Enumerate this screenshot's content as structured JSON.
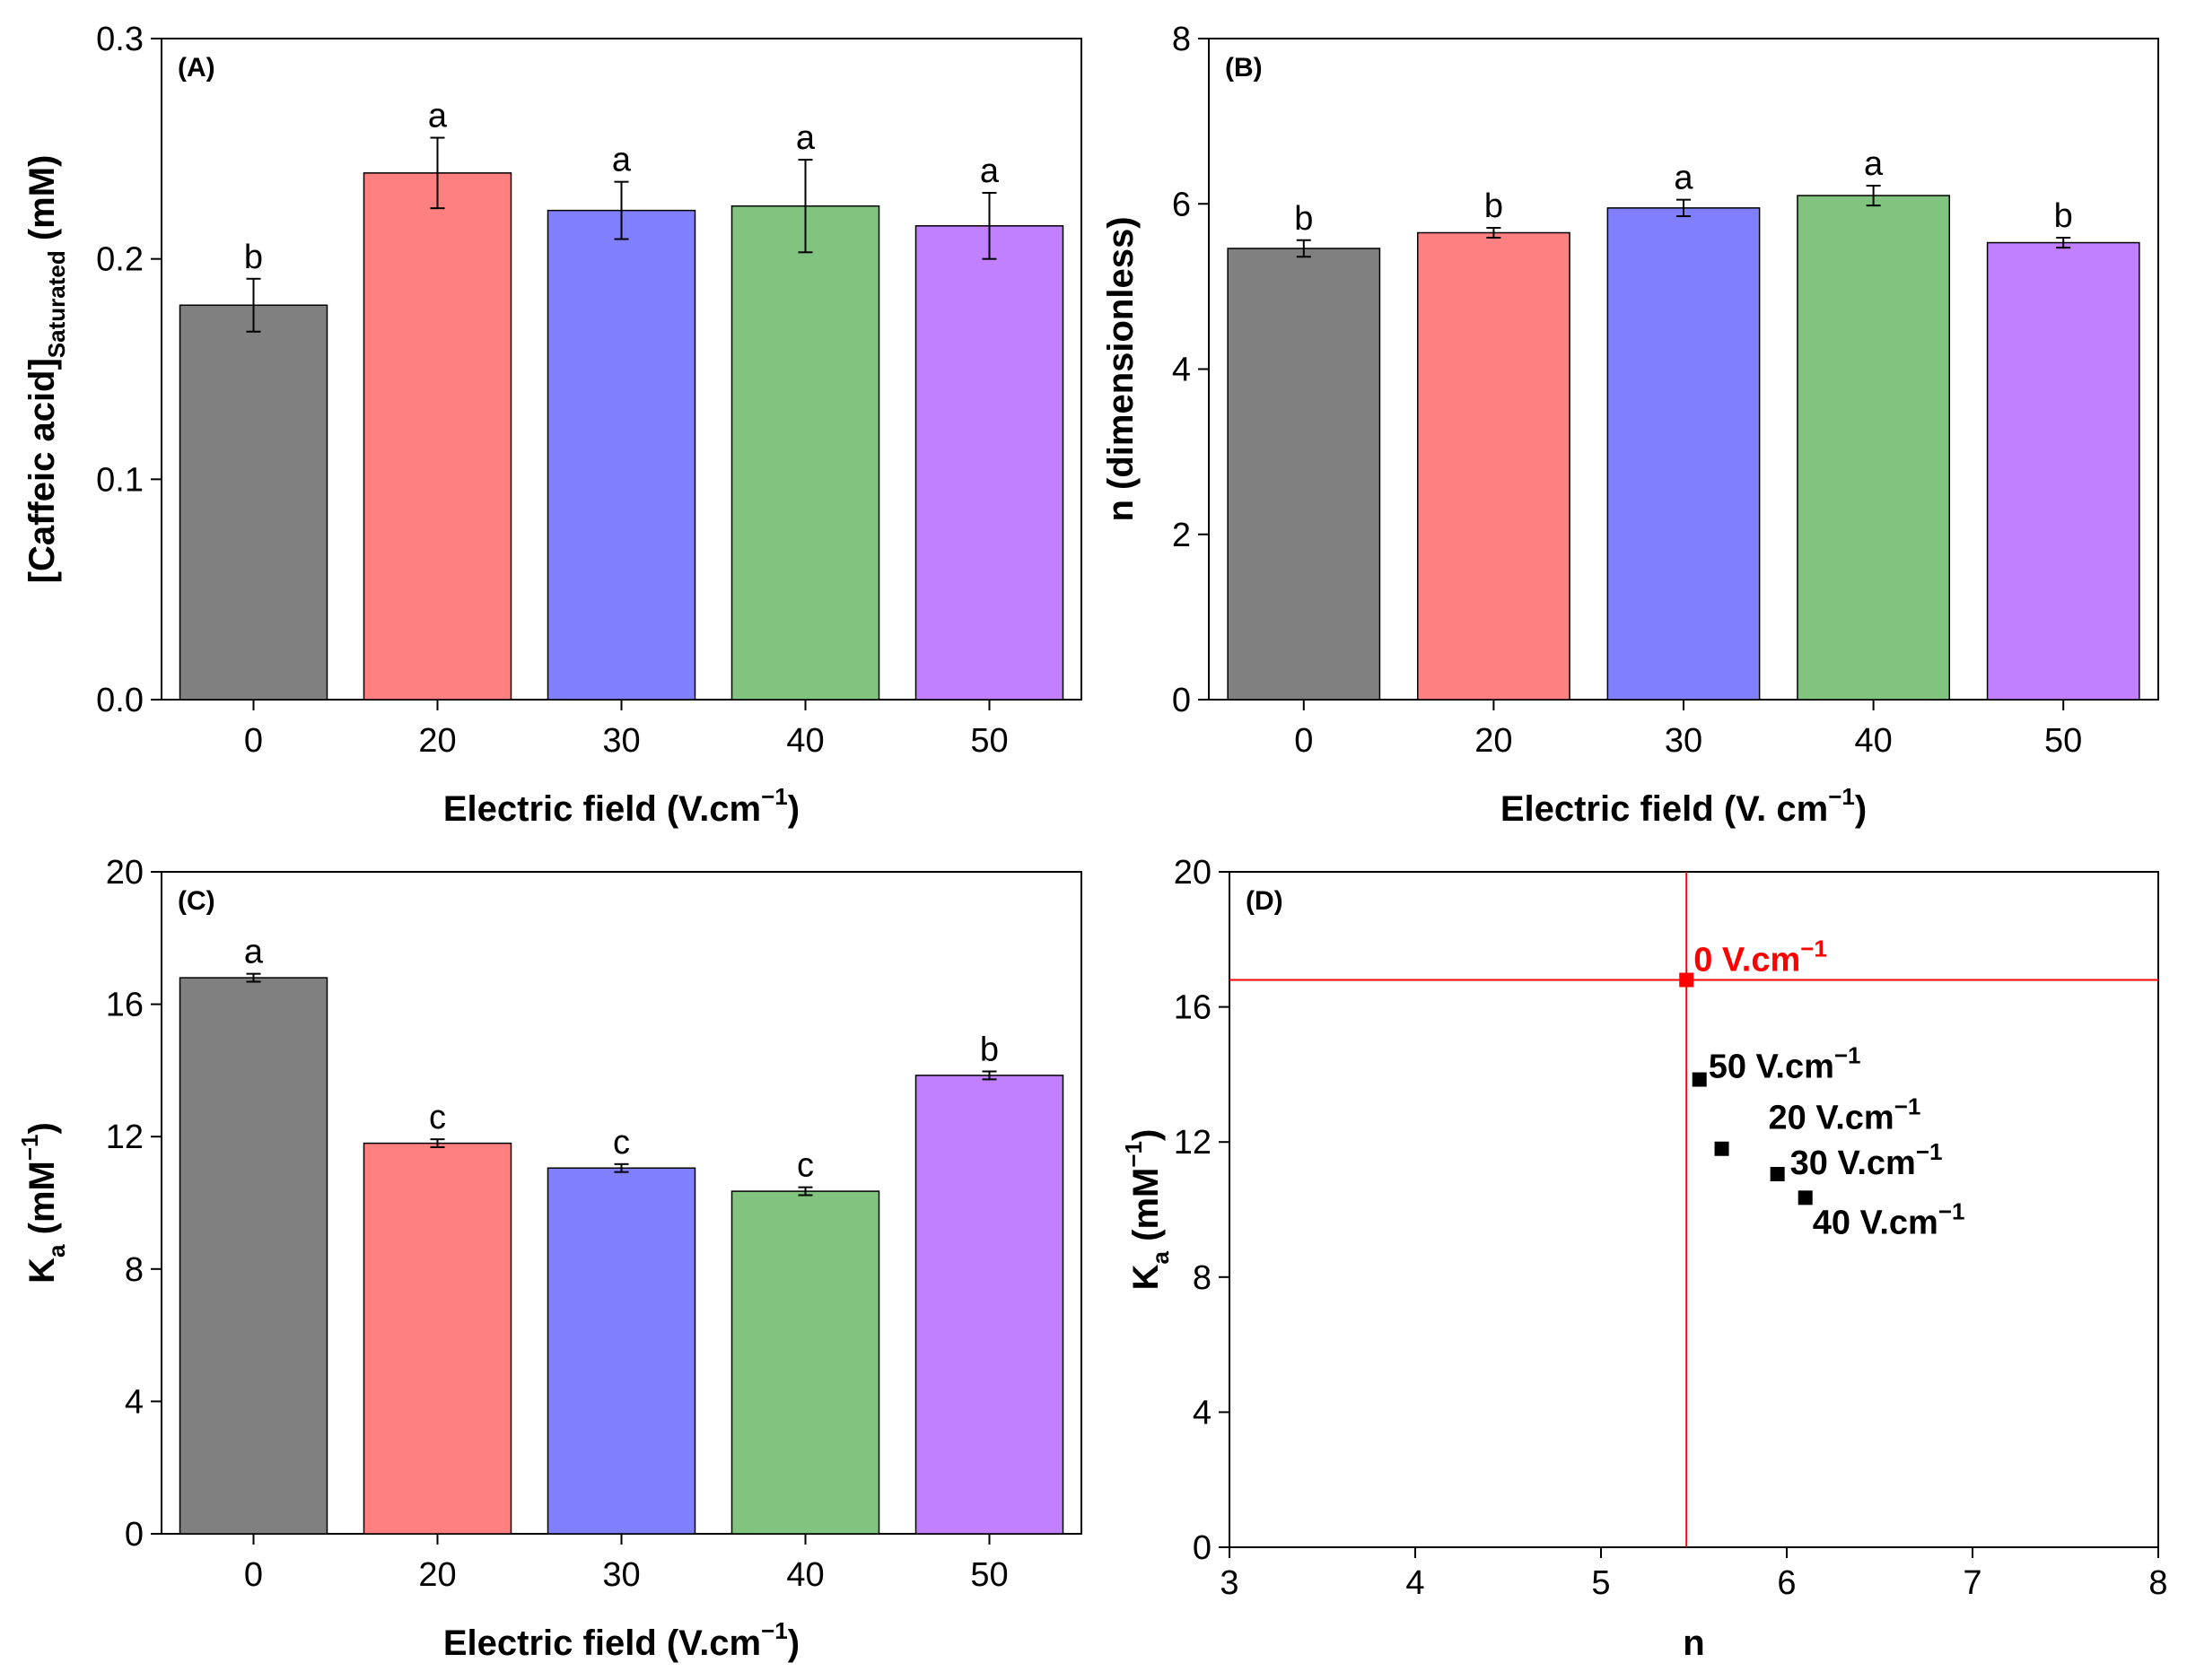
{
  "colors": {
    "bar_0": "#808080",
    "bar_20": "#ff8080",
    "bar_30": "#8080ff",
    "bar_40": "#80c480",
    "bar_50": "#c080ff",
    "highlight": "#ff0000",
    "points": "#000000"
  },
  "chart_data": [
    {
      "type": "bar",
      "panel_label": "(A)",
      "categories": [
        "0",
        "20",
        "30",
        "40",
        "50"
      ],
      "values": [
        0.179,
        0.239,
        0.222,
        0.224,
        0.215
      ],
      "errors": [
        0.012,
        0.016,
        0.013,
        0.021,
        0.015
      ],
      "significance": [
        "b",
        "a",
        "a",
        "a",
        "a"
      ],
      "xlabel": "Electric field (V.cm",
      "xlabel_sup": "−1",
      "xlabel_end": ")",
      "ylabel": "[Caffeic acid]",
      "ylabel_sub": "Saturated",
      "ylabel_end": " (mM)",
      "ylim": [
        0,
        0.3
      ],
      "yticks": [
        "0.0",
        "0.1",
        "0.2",
        "0.3"
      ],
      "ytick_values": [
        0,
        0.1,
        0.2,
        0.3
      ]
    },
    {
      "type": "bar",
      "panel_label": "(B)",
      "categories": [
        "0",
        "20",
        "30",
        "40",
        "50"
      ],
      "values": [
        5.46,
        5.65,
        5.95,
        6.1,
        5.53
      ],
      "errors": [
        0.1,
        0.06,
        0.1,
        0.12,
        0.06
      ],
      "significance": [
        "b",
        "b",
        "a",
        "a",
        "b"
      ],
      "xlabel": "Electric field (V. cm",
      "xlabel_sup": "−1",
      "xlabel_end": ")",
      "ylabel": "n (dimensionless)",
      "ylim": [
        0,
        8
      ],
      "yticks": [
        "0",
        "2",
        "4",
        "6",
        "8"
      ],
      "ytick_values": [
        0,
        2,
        4,
        6,
        8
      ]
    },
    {
      "type": "bar",
      "panel_label": "(C)",
      "categories": [
        "0",
        "20",
        "30",
        "40",
        "50"
      ],
      "values": [
        16.8,
        11.8,
        11.05,
        10.35,
        13.85
      ],
      "errors": [
        0.12,
        0.12,
        0.12,
        0.12,
        0.12
      ],
      "significance": [
        "a",
        "c",
        "c",
        "c",
        "b"
      ],
      "xlabel": "Electric field (V.cm",
      "xlabel_sup": "−1",
      "xlabel_end": ")",
      "ylabel": "K",
      "ylabel_sub": "a",
      "ylabel_end": " (mM",
      "ylabel_sup": "−1",
      "ylabel_end2": ")",
      "ylim": [
        0,
        20
      ],
      "yticks": [
        "0",
        "4",
        "8",
        "12",
        "16",
        "20"
      ],
      "ytick_values": [
        0,
        4,
        8,
        12,
        16,
        20
      ]
    },
    {
      "type": "scatter",
      "panel_label": "(D)",
      "points": [
        {
          "x": 5.46,
          "y": 16.8,
          "label": "0 V.cm",
          "sup": "−1",
          "highlight": true
        },
        {
          "x": 5.53,
          "y": 13.85,
          "label": "50 V.cm",
          "sup": "−1",
          "highlight": false
        },
        {
          "x": 5.65,
          "y": 11.8,
          "label": "20 V.cm",
          "sup": "−1",
          "highlight": false
        },
        {
          "x": 5.95,
          "y": 11.05,
          "label": "30 V.cm",
          "sup": "−1",
          "highlight": false
        },
        {
          "x": 6.1,
          "y": 10.35,
          "label": "40 V.cm",
          "sup": "−1",
          "highlight": false
        }
      ],
      "reference_lines": {
        "x": 5.46,
        "y": 16.8
      },
      "xlabel": "n",
      "ylabel": "K",
      "ylabel_sub": "a",
      "ylabel_end": " (mM",
      "ylabel_sup": "−1",
      "ylabel_end2": ")",
      "xlim": [
        3,
        8
      ],
      "ylim": [
        0,
        20
      ],
      "xticks": [
        "3",
        "4",
        "5",
        "6",
        "7",
        "8"
      ],
      "xtick_values": [
        3,
        4,
        5,
        6,
        7,
        8
      ],
      "yticks": [
        "0",
        "4",
        "8",
        "12",
        "16",
        "20"
      ],
      "ytick_values": [
        0,
        4,
        8,
        12,
        16,
        20
      ]
    }
  ]
}
